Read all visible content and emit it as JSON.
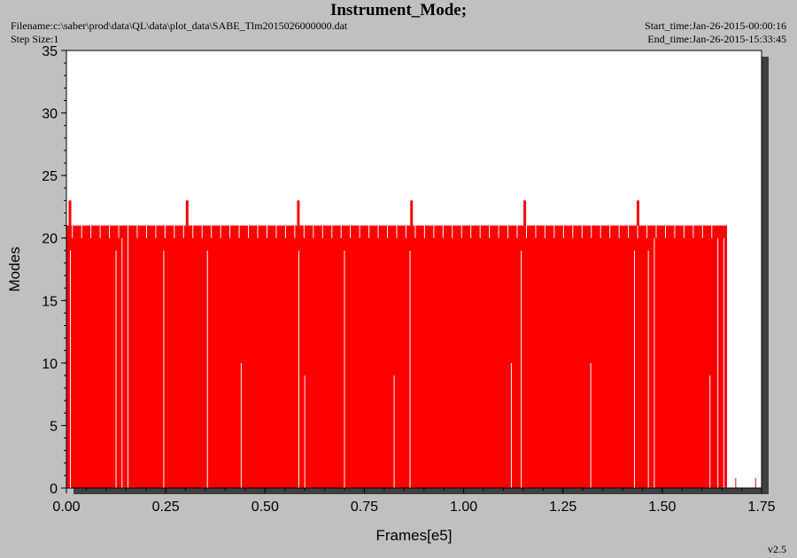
{
  "header": {
    "title": "Instrument_Mode;",
    "filename": "Filename:c:\\saber\\prod\\data\\QL\\data\\plot_data\\SABE_Tlm2015026000000.dat",
    "step_size": "Step Size:1",
    "start_time": "Start_time:Jan-26-2015-00:00:16",
    "end_time": "End_time:Jan-26-2015-15:33:45"
  },
  "version": "v2.5",
  "colors": {
    "series": "#ff0000",
    "background": "#c0c0c0",
    "plot_area": "#ffffff"
  },
  "chart_data": {
    "type": "bar",
    "xlabel": "Frames[e5]",
    "ylabel": "Modes",
    "xlim": [
      0,
      1.75
    ],
    "ylim": [
      0,
      35
    ],
    "x_ticks": [
      "0.00",
      "0.25",
      "0.50",
      "0.75",
      "1.00",
      "1.25",
      "1.50",
      "1.75"
    ],
    "y_ticks": [
      "0",
      "5",
      "10",
      "15",
      "20",
      "25",
      "30",
      "35"
    ],
    "grid": false,
    "series": [
      {
        "fill_range": [
          0.0,
          1.663
        ],
        "base_mode": 21,
        "max_points": [
          0.01,
          0.305,
          0.585,
          0.87,
          1.155,
          1.44
        ],
        "max_mode": 23,
        "gaps": [
          {
            "x": 0.01,
            "top": 19
          },
          {
            "x": 0.125,
            "top": 19
          },
          {
            "x": 0.14,
            "top": 20
          },
          {
            "x": 0.155,
            "top": 20
          },
          {
            "x": 0.245,
            "top": 19
          },
          {
            "x": 0.355,
            "top": 19
          },
          {
            "x": 0.44,
            "top": 10
          },
          {
            "x": 0.585,
            "top": 19
          },
          {
            "x": 0.6,
            "top": 9
          },
          {
            "x": 0.7,
            "top": 19
          },
          {
            "x": 0.825,
            "top": 9
          },
          {
            "x": 0.865,
            "top": 19
          },
          {
            "x": 1.12,
            "top": 10
          },
          {
            "x": 1.145,
            "top": 19
          },
          {
            "x": 1.32,
            "top": 10
          },
          {
            "x": 1.43,
            "top": 19
          },
          {
            "x": 1.465,
            "top": 19
          },
          {
            "x": 1.48,
            "top": 20
          },
          {
            "x": 1.62,
            "top": 9
          },
          {
            "x": 1.64,
            "top": 20
          },
          {
            "x": 1.655,
            "top": 20
          }
        ],
        "stubs": [
          1.685,
          1.735
        ]
      }
    ]
  }
}
